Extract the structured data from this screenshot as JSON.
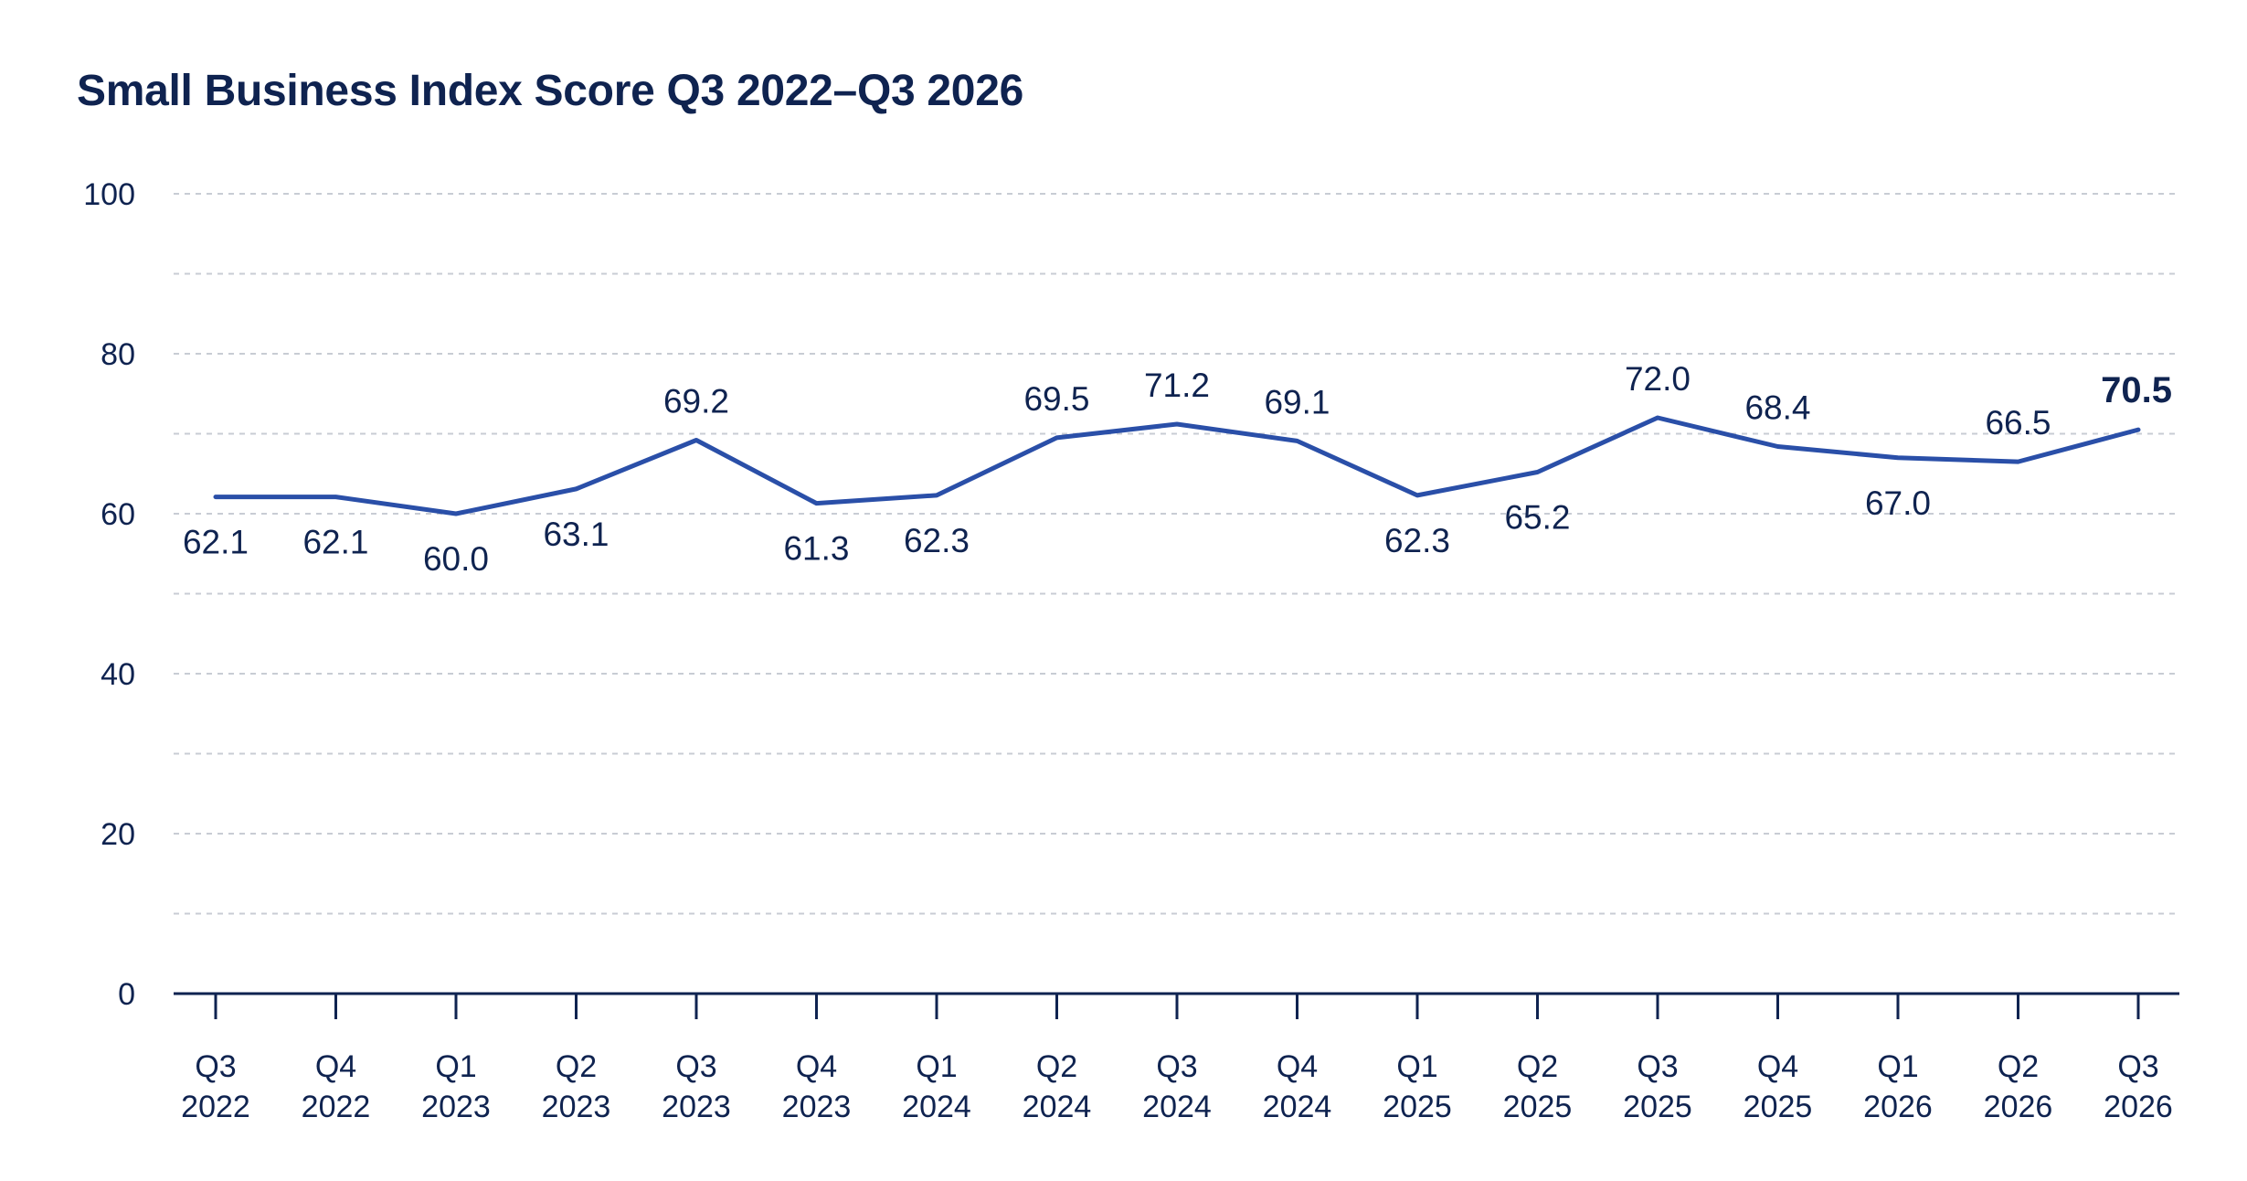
{
  "chart_data": {
    "type": "line",
    "title": "Small Business Index Score Q3 2022–Q3 2026",
    "xlabel": "",
    "ylabel": "",
    "ylim": [
      0,
      100
    ],
    "yticks": [
      0,
      20,
      40,
      60,
      80,
      100
    ],
    "grid": true,
    "legend": "none",
    "categories": [
      [
        "Q3",
        "2022"
      ],
      [
        "Q4",
        "2022"
      ],
      [
        "Q1",
        "2023"
      ],
      [
        "Q2",
        "2023"
      ],
      [
        "Q3",
        "2023"
      ],
      [
        "Q4",
        "2023"
      ],
      [
        "Q1",
        "2024"
      ],
      [
        "Q2",
        "2024"
      ],
      [
        "Q3",
        "2024"
      ],
      [
        "Q4",
        "2024"
      ],
      [
        "Q1",
        "2025"
      ],
      [
        "Q2",
        "2025"
      ],
      [
        "Q3",
        "2025"
      ],
      [
        "Q4",
        "2025"
      ],
      [
        "Q1",
        "2026"
      ],
      [
        "Q2",
        "2026"
      ],
      [
        "Q3",
        "2026"
      ]
    ],
    "series": [
      {
        "values": [
          62.1,
          62.1,
          60.0,
          63.1,
          69.2,
          61.3,
          62.3,
          69.5,
          71.2,
          69.1,
          62.3,
          65.2,
          72.0,
          68.4,
          67.0,
          66.5,
          70.5
        ],
        "labels": [
          "62.1",
          "62.1",
          "60.0",
          "63.1",
          "69.2",
          "61.3",
          "62.3",
          "69.5",
          "71.2",
          "69.1",
          "62.3",
          "65.2",
          "72.0",
          "68.4",
          "67.0",
          "66.5",
          "70.5"
        ],
        "label_position": [
          "below",
          "below",
          "below",
          "below",
          "above",
          "below",
          "below",
          "above",
          "above",
          "above",
          "below",
          "below",
          "above",
          "above",
          "below",
          "above",
          "above"
        ],
        "color": "#2a4fa8"
      }
    ],
    "colors": {
      "text": "#0f2350",
      "axis": "#0f2350",
      "grid": "#c8ccd4",
      "line": "#2a4fa8"
    }
  }
}
